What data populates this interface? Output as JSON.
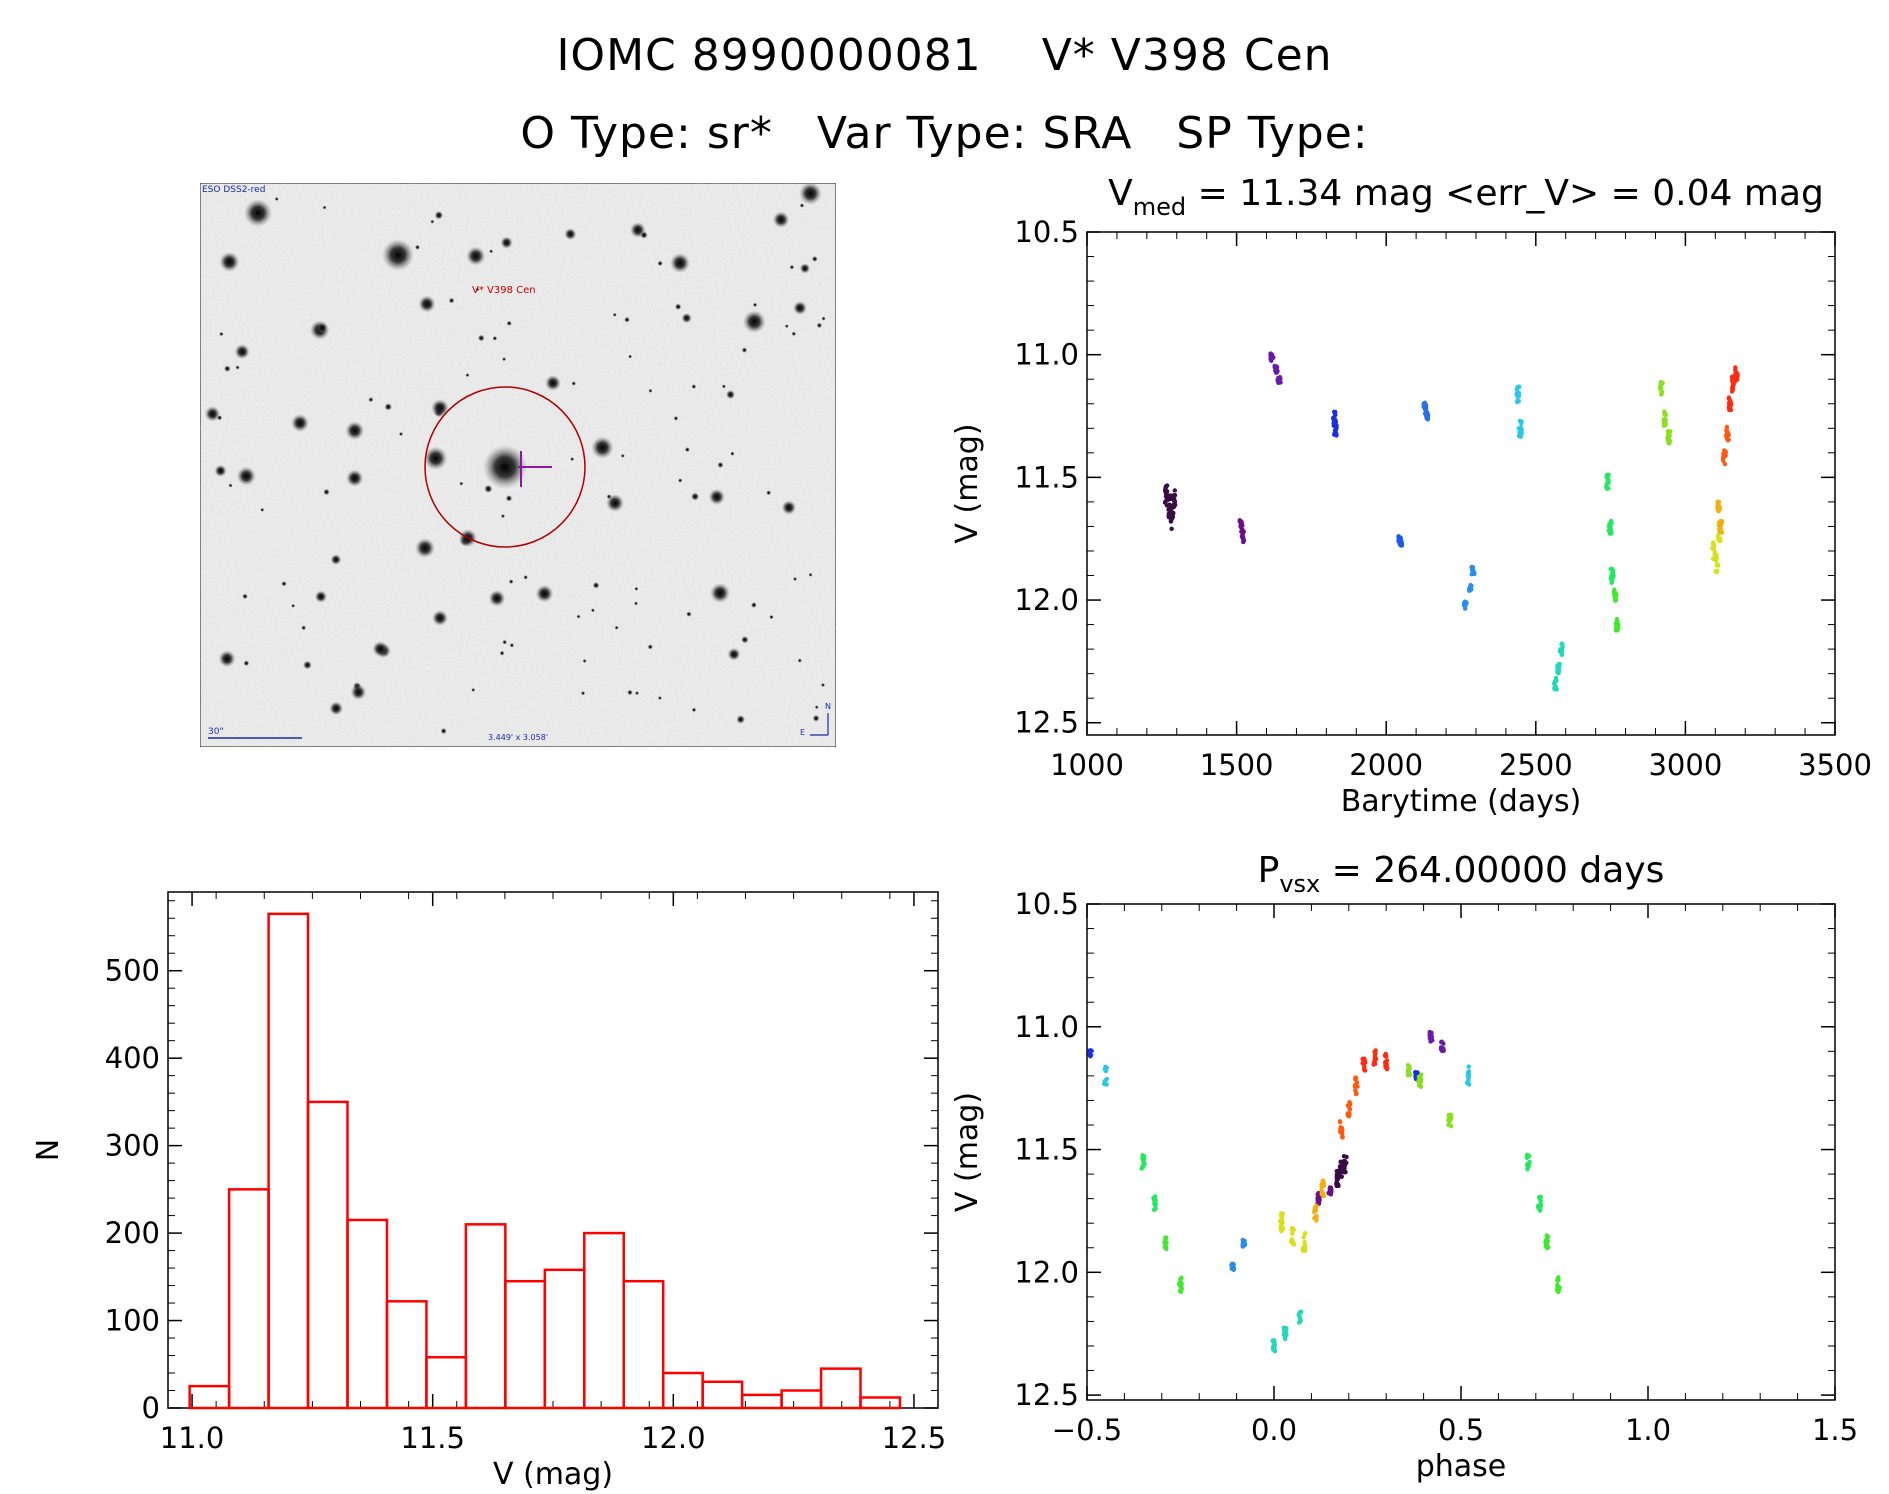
{
  "header": {
    "id": "IOMC 8990000081",
    "name": "V* V398 Cen",
    "otype": "O Type: sr*",
    "vartype": "Var Type: SRA",
    "sptype": "SP Type:"
  },
  "finder": {
    "survey_label": "ESO DSS2-red",
    "target_label": "V* V398 Cen",
    "scale_label": "30\"",
    "fov_label": "3.449' x 3.058'",
    "east_label": "E",
    "north_label": "N"
  },
  "chart_data": [
    {
      "type": "scatter",
      "title": "V_med = 11.34 mag <err_V> = 0.04 mag",
      "title_parts": {
        "v": "V",
        "sub": "med",
        "rest": "= 11.34 mag <err_V> = 0.04 mag"
      },
      "xlabel": "Barytime (days)",
      "ylabel": "V (mag)",
      "xlim": [
        1000,
        3500
      ],
      "ylim": [
        12.55,
        10.5
      ],
      "xticks": [
        1000,
        1500,
        2000,
        2500,
        3000,
        3500
      ],
      "yticks": [
        10.5,
        11.0,
        11.5,
        12.0,
        12.5
      ],
      "groups": [
        {
          "color": "#3a0a45",
          "x": [
            1265,
            1275,
            1285,
            1290
          ],
          "y": [
            11.58,
            11.62,
            11.66,
            11.6
          ],
          "spread": 0.1
        },
        {
          "color": "#6a0f8c",
          "x": [
            1515,
            1520
          ],
          "y": [
            11.7,
            11.74
          ],
          "spread": 0.05
        },
        {
          "color": "#6a1aa8",
          "x": [
            1618,
            1632,
            1642
          ],
          "y": [
            11.01,
            11.06,
            11.1
          ],
          "spread": 0.03
        },
        {
          "color": "#1c2fe0",
          "x": [
            1825,
            1830
          ],
          "y": [
            11.26,
            11.3
          ],
          "spread": 0.06
        },
        {
          "color": "#1c5ae8",
          "x": [
            2045,
            2048
          ],
          "y": [
            11.75,
            11.77
          ],
          "spread": 0.02
        },
        {
          "color": "#2a6fe8",
          "x": [
            2130,
            2135
          ],
          "y": [
            11.21,
            11.25
          ],
          "spread": 0.03
        },
        {
          "color": "#2a8ee8",
          "x": [
            2265,
            2280,
            2290
          ],
          "y": [
            12.02,
            11.95,
            11.88
          ],
          "spread": 0.03
        },
        {
          "color": "#28c8e8",
          "x": [
            2440,
            2448
          ],
          "y": [
            11.16,
            11.3
          ],
          "spread": 0.07
        },
        {
          "color": "#22d8b8",
          "x": [
            2565,
            2575,
            2585
          ],
          "y": [
            12.34,
            12.28,
            12.2
          ],
          "spread": 0.05
        },
        {
          "color": "#24e860",
          "x": [
            2740,
            2748,
            2755
          ],
          "y": [
            11.52,
            11.7,
            11.9
          ],
          "spread": 0.07
        },
        {
          "color": "#40e830",
          "x": [
            2765,
            2772
          ],
          "y": [
            11.98,
            12.1
          ],
          "spread": 0.06
        },
        {
          "color": "#88e020",
          "x": [
            2920,
            2930,
            2945
          ],
          "y": [
            11.14,
            11.26,
            11.34
          ],
          "spread": 0.06
        },
        {
          "color": "#d8e018",
          "x": [
            3095,
            3105,
            3112
          ],
          "y": [
            11.8,
            11.85,
            11.72
          ],
          "spread": 0.08
        },
        {
          "color": "#f0b010",
          "x": [
            3110,
            3118
          ],
          "y": [
            11.62,
            11.7
          ],
          "spread": 0.05
        },
        {
          "color": "#ff5a10",
          "x": [
            3130,
            3140
          ],
          "y": [
            11.42,
            11.32
          ],
          "spread": 0.06
        },
        {
          "color": "#ff2a10",
          "x": [
            3150,
            3160,
            3170
          ],
          "y": [
            11.2,
            11.12,
            11.08
          ],
          "spread": 0.06
        }
      ]
    },
    {
      "type": "bar",
      "title": "",
      "xlabel": "V (mag)",
      "ylabel": "N",
      "xlim": [
        10.95,
        12.55
      ],
      "ylim": [
        0,
        590
      ],
      "xticks": [
        11.0,
        11.5,
        12.0,
        12.5
      ],
      "yticks": [
        0,
        100,
        200,
        300,
        400,
        500
      ],
      "bin_start": 10.995,
      "bin_width": 0.082,
      "values": [
        25,
        250,
        565,
        350,
        215,
        122,
        58,
        210,
        145,
        158,
        200,
        145,
        40,
        30,
        15,
        20,
        45,
        12
      ],
      "color": "#ff0000"
    },
    {
      "type": "scatter",
      "title": "P_vsx = 264.00000 days",
      "title_parts": {
        "v": "P",
        "sub": "vsx",
        "rest": "= 264.00000 days"
      },
      "xlabel": "phase",
      "ylabel": "V (mag)",
      "xlim": [
        -0.5,
        1.5
      ],
      "ylim": [
        12.52,
        10.5
      ],
      "xticks": [
        -0.5,
        0.0,
        0.5,
        1.0,
        1.5
      ],
      "yticks": [
        10.5,
        11.0,
        11.5,
        12.0,
        12.5
      ],
      "groups": [
        {
          "color": "#3a0a45",
          "x": [
            0.17,
            0.18,
            0.19
          ],
          "y": [
            11.62,
            11.58,
            11.56
          ],
          "spread": 0.07
        },
        {
          "color": "#6a0f8c",
          "x": [
            0.12,
            0.15
          ],
          "y": [
            11.7,
            11.66
          ],
          "spread": 0.05
        },
        {
          "color": "#6a1aa8",
          "x": [
            0.42,
            0.45
          ],
          "y": [
            11.04,
            11.08
          ],
          "spread": 0.04
        },
        {
          "color": "#1c2fe0",
          "x": [
            -0.49,
            0.38
          ],
          "y": [
            11.11,
            11.2
          ],
          "spread": 0.03
        },
        {
          "color": "#2a8ee8",
          "x": [
            -0.11,
            -0.08
          ],
          "y": [
            11.98,
            11.88
          ],
          "spread": 0.03
        },
        {
          "color": "#28c8e8",
          "x": [
            -0.45,
            0.52
          ],
          "y": [
            11.2,
            11.2
          ],
          "spread": 0.08
        },
        {
          "color": "#22d8b8",
          "x": [
            0.0,
            0.03,
            0.07
          ],
          "y": [
            12.3,
            12.25,
            12.18
          ],
          "spread": 0.05
        },
        {
          "color": "#24e860",
          "x": [
            -0.35,
            -0.32,
            0.68,
            0.71
          ],
          "y": [
            11.55,
            11.72,
            11.55,
            11.72
          ],
          "spread": 0.06
        },
        {
          "color": "#40e830",
          "x": [
            -0.29,
            -0.25,
            0.73,
            0.76
          ],
          "y": [
            11.88,
            12.05,
            11.88,
            12.05
          ],
          "spread": 0.06
        },
        {
          "color": "#88e020",
          "x": [
            0.36,
            0.39,
            0.47
          ],
          "y": [
            11.18,
            11.22,
            11.38
          ],
          "spread": 0.05
        },
        {
          "color": "#d8e018",
          "x": [
            0.02,
            0.05,
            0.08
          ],
          "y": [
            11.8,
            11.86,
            11.88
          ],
          "spread": 0.08
        },
        {
          "color": "#f0b010",
          "x": [
            0.11,
            0.13
          ],
          "y": [
            11.76,
            11.66
          ],
          "spread": 0.07
        },
        {
          "color": "#ff5a10",
          "x": [
            0.18,
            0.2,
            0.22
          ],
          "y": [
            11.42,
            11.34,
            11.24
          ],
          "spread": 0.07
        },
        {
          "color": "#ff2a10",
          "x": [
            0.24,
            0.27,
            0.3
          ],
          "y": [
            11.16,
            11.12,
            11.14
          ],
          "spread": 0.07
        }
      ]
    }
  ]
}
